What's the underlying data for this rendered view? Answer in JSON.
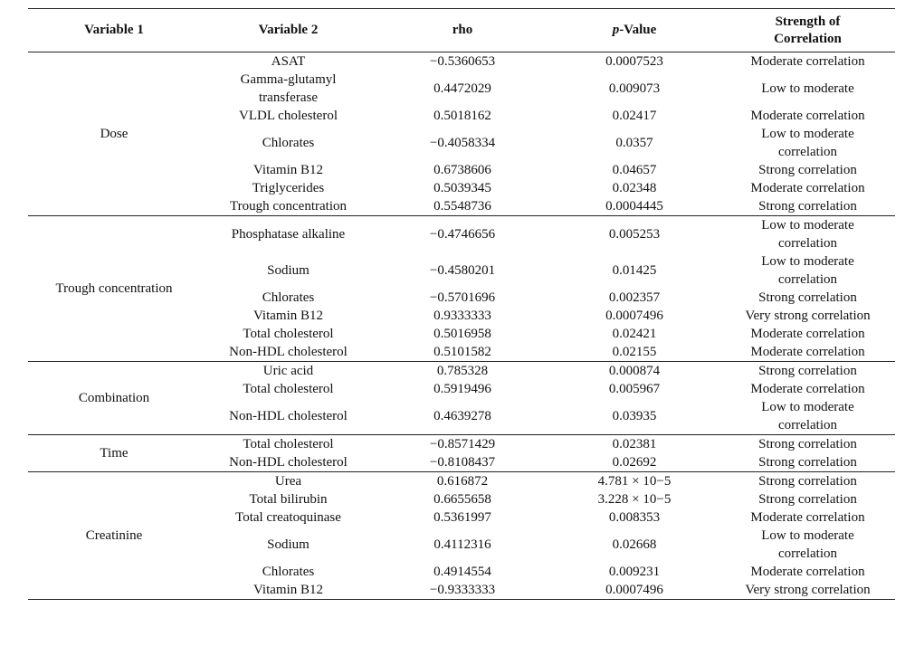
{
  "table": {
    "headers": {
      "var1": "Variable 1",
      "var2": "Variable 2",
      "rho": "rho",
      "p_italic": "p",
      "p_rest": "-Value",
      "strength_line1": "Strength of",
      "strength_line2": "Correlation"
    },
    "groups": [
      {
        "variable1": "Dose",
        "rows": [
          {
            "variable2": "ASAT",
            "rho": "−0.5360653",
            "p": "0.0007523",
            "strength": "Moderate correlation"
          },
          {
            "variable2": "Gamma-glutamyl transferase",
            "rho": "0.4472029",
            "p": "0.009073",
            "strength": "Low to moderate"
          },
          {
            "variable2": "VLDL cholesterol",
            "rho": "0.5018162",
            "p": "0.02417",
            "strength": "Moderate correlation"
          },
          {
            "variable2": "Chlorates",
            "rho": "−0.4058334",
            "p": "0.0357",
            "strength": "Low to moderate correlation"
          },
          {
            "variable2": "Vitamin B12",
            "rho": "0.6738606",
            "p": "0.04657",
            "strength": "Strong correlation"
          },
          {
            "variable2": "Triglycerides",
            "rho": "0.5039345",
            "p": "0.02348",
            "strength": "Moderate correlation"
          },
          {
            "variable2": "Trough concentration",
            "rho": "0.5548736",
            "p": "0.0004445",
            "strength": "Strong correlation"
          }
        ]
      },
      {
        "variable1": "Trough concentration",
        "rows": [
          {
            "variable2": "Phosphatase alkaline",
            "rho": "−0.4746656",
            "p": "0.005253",
            "strength": "Low to moderate correlation"
          },
          {
            "variable2": "Sodium",
            "rho": "−0.4580201",
            "p": "0.01425",
            "strength": "Low to moderate correlation"
          },
          {
            "variable2": "Chlorates",
            "rho": "−0.5701696",
            "p": "0.002357",
            "strength": "Strong correlation"
          },
          {
            "variable2": "Vitamin B12",
            "rho": "0.9333333",
            "p": "0.0007496",
            "strength": "Very strong correlation"
          },
          {
            "variable2": "Total cholesterol",
            "rho": "0.5016958",
            "p": "0.02421",
            "strength": "Moderate correlation"
          },
          {
            "variable2": "Non-HDL cholesterol",
            "rho": "0.5101582",
            "p": "0.02155",
            "strength": "Moderate correlation"
          }
        ]
      },
      {
        "variable1": "Combination",
        "rows": [
          {
            "variable2": "Uric acid",
            "rho": "0.785328",
            "p": "0.000874",
            "strength": "Strong correlation"
          },
          {
            "variable2": "Total cholesterol",
            "rho": "0.5919496",
            "p": "0.005967",
            "strength": "Moderate correlation"
          },
          {
            "variable2": "Non-HDL cholesterol",
            "rho": "0.4639278",
            "p": "0.03935",
            "strength": "Low to moderate correlation"
          }
        ]
      },
      {
        "variable1": "Time",
        "rows": [
          {
            "variable2": "Total cholesterol",
            "rho": "−0.8571429",
            "p": "0.02381",
            "strength": "Strong correlation"
          },
          {
            "variable2": "Non-HDL cholesterol",
            "rho": "−0.8108437",
            "p": "0.02692",
            "strength": "Strong correlation"
          }
        ]
      },
      {
        "variable1": "Creatinine",
        "rows": [
          {
            "variable2": "Urea",
            "rho": "0.616872",
            "p": "4.781 × 10−5",
            "strength": "Strong correlation"
          },
          {
            "variable2": "Total bilirubin",
            "rho": "0.6655658",
            "p": "3.228 × 10−5",
            "strength": "Strong correlation"
          },
          {
            "variable2": "Total creatoquinase",
            "rho": "0.5361997",
            "p": "0.008353",
            "strength": "Moderate correlation"
          },
          {
            "variable2": "Sodium",
            "rho": "0.4112316",
            "p": "0.02668",
            "strength": "Low to moderate correlation"
          },
          {
            "variable2": "Chlorates",
            "rho": "0.4914554",
            "p": "0.009231",
            "strength": "Moderate correlation"
          },
          {
            "variable2": "Vitamin B12",
            "rho": "−0.9333333",
            "p": "0.0007496",
            "strength": "Very strong correlation"
          }
        ]
      }
    ]
  }
}
